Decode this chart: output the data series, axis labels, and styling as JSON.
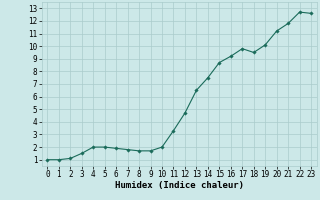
{
  "x": [
    0,
    1,
    2,
    3,
    4,
    5,
    6,
    7,
    8,
    9,
    10,
    11,
    12,
    13,
    14,
    15,
    16,
    17,
    18,
    19,
    20,
    21,
    22,
    23
  ],
  "y": [
    1.0,
    1.0,
    1.1,
    1.5,
    2.0,
    2.0,
    1.9,
    1.8,
    1.7,
    1.7,
    2.0,
    3.3,
    4.7,
    6.5,
    7.5,
    8.7,
    9.2,
    9.8,
    9.5,
    10.1,
    11.2,
    11.8,
    12.7,
    12.6
  ],
  "line_color": "#1a6b5a",
  "marker": "D",
  "markersize": 1.8,
  "linewidth": 0.8,
  "bg_color": "#cce8e8",
  "grid_color": "#aacccc",
  "xlabel": "Humidex (Indice chaleur)",
  "xlabel_fontsize": 6.5,
  "xlabel_fontfamily": "monospace",
  "ylim": [
    0.5,
    13.5
  ],
  "xlim": [
    -0.5,
    23.5
  ],
  "yticks": [
    1,
    2,
    3,
    4,
    5,
    6,
    7,
    8,
    9,
    10,
    11,
    12,
    13
  ],
  "xticks": [
    0,
    1,
    2,
    3,
    4,
    5,
    6,
    7,
    8,
    9,
    10,
    11,
    12,
    13,
    14,
    15,
    16,
    17,
    18,
    19,
    20,
    21,
    22,
    23
  ],
  "tick_fontsize": 5.5,
  "tick_fontfamily": "monospace"
}
